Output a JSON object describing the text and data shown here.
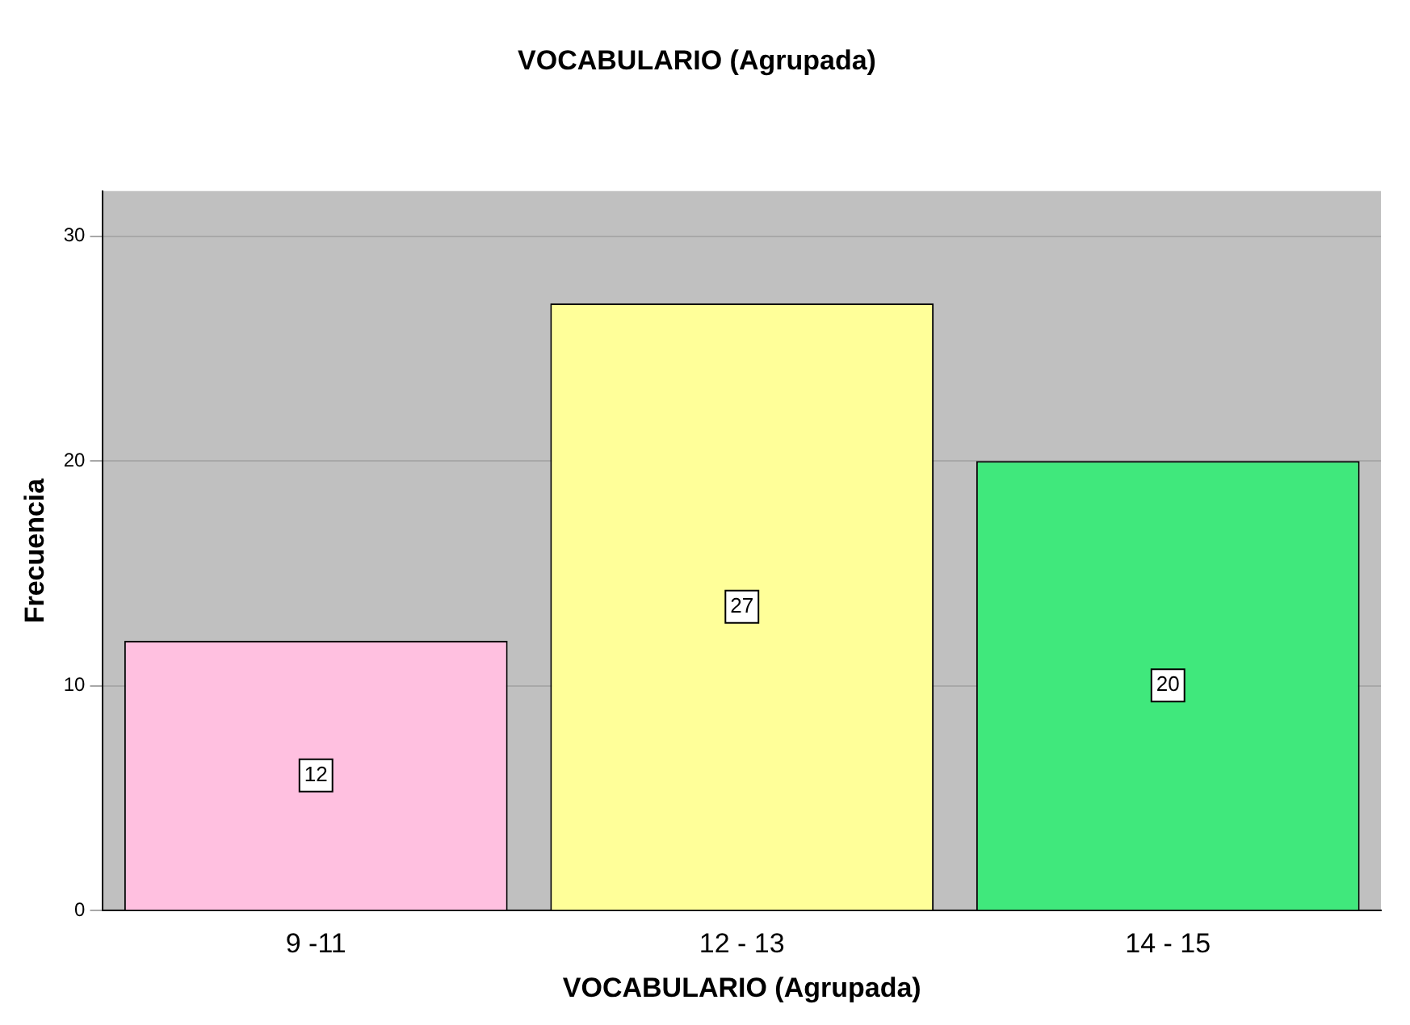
{
  "chart_data": {
    "type": "bar",
    "title": "VOCABULARIO (Agrupada)",
    "xlabel": "VOCABULARIO (Agrupada)",
    "ylabel": "Frecuencia",
    "categories": [
      "9 -11",
      "12 - 13",
      "14 - 15"
    ],
    "values": [
      12,
      27,
      20
    ],
    "colors": [
      "#ffc0e0",
      "#ffff99",
      "#40e87c"
    ],
    "ylim": [
      0,
      32
    ],
    "yticks": [
      0,
      10,
      20,
      30
    ],
    "grid": "y",
    "data_labels": true,
    "legend": false
  }
}
